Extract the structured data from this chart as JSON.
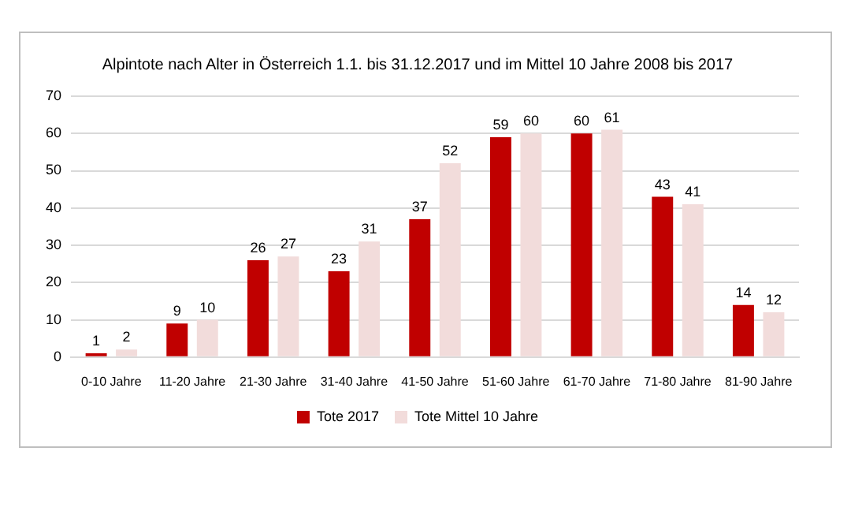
{
  "chart_data": {
    "type": "bar",
    "title": "Alpintote nach Alter in Österreich 1.1. bis 31.12.2017 und im Mittel 10 Jahre 2008 bis 2017",
    "categories": [
      "0-10 Jahre",
      "11-20 Jahre",
      "21-30 Jahre",
      "31-40 Jahre",
      "41-50 Jahre",
      "51-60 Jahre",
      "61-70 Jahre",
      "71-80 Jahre",
      "81-90 Jahre"
    ],
    "series": [
      {
        "name": "Tote 2017",
        "color": "#c00000",
        "values": [
          1,
          9,
          26,
          23,
          37,
          59,
          60,
          43,
          14
        ]
      },
      {
        "name": "Tote Mittel 10 Jahre",
        "color": "#f2dcdb",
        "values": [
          2,
          10,
          27,
          31,
          52,
          60,
          61,
          41,
          12
        ]
      }
    ],
    "ylim": [
      0,
      70
    ],
    "yticks": [
      0,
      10,
      20,
      30,
      40,
      50,
      60,
      70
    ],
    "grid": "y",
    "legend": "bottom",
    "data_labels": true
  }
}
